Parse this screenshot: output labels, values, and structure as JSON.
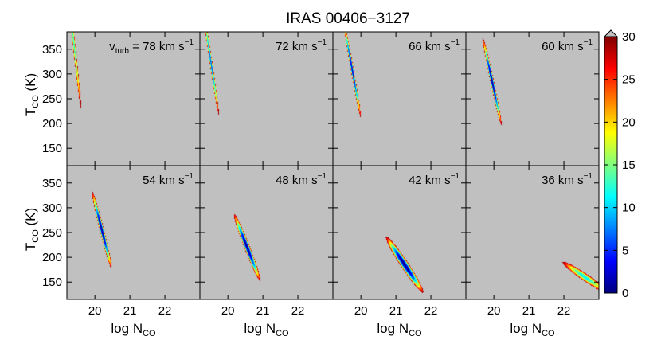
{
  "chart_data": {
    "type": "heatmap",
    "title": "IRAS 00406−3127",
    "xlabel": {
      "base": "log N",
      "sub": "CO"
    },
    "ylabel": {
      "base": "T",
      "sub": "CO",
      "unit": " (K)"
    },
    "xlim": [
      19.2,
      23.0
    ],
    "ylim": [
      115,
      385
    ],
    "xticks": [
      20,
      21,
      22
    ],
    "yticks": [
      150,
      200,
      250,
      300,
      350
    ],
    "colorbar": {
      "min": 0,
      "max": 30,
      "ticks": [
        0,
        5,
        10,
        15,
        20,
        25,
        30
      ],
      "extend": "max"
    },
    "grid": false,
    "background_color": "#c0c0c0",
    "panel_label_prefix": {
      "base": "v",
      "sub": "turb",
      "eq": " = "
    },
    "unit_label": {
      "base": " km s",
      "sup": "−1"
    },
    "panels": [
      {
        "label": "78",
        "x0": 19.4,
        "y0": 362,
        "sx": 0.15,
        "sy": 95,
        "rho": -0.985,
        "vmin": 12
      },
      {
        "label": "72",
        "x0": 19.52,
        "y0": 322,
        "sx": 0.16,
        "sy": 75,
        "rho": -0.985,
        "vmin": 6
      },
      {
        "label": "66",
        "x0": 19.75,
        "y0": 310,
        "sx": 0.18,
        "sy": 70,
        "rho": -0.985,
        "vmin": 2
      },
      {
        "label": "60",
        "x0": 19.95,
        "y0": 285,
        "sx": 0.19,
        "sy": 62,
        "rho": -0.98,
        "vmin": 0
      },
      {
        "label": "54",
        "x0": 20.2,
        "y0": 255,
        "sx": 0.2,
        "sy": 55,
        "rho": -0.975,
        "vmin": 0
      },
      {
        "label": "48",
        "x0": 20.55,
        "y0": 220,
        "sx": 0.27,
        "sy": 48,
        "rho": -0.975,
        "vmin": 0
      },
      {
        "label": "42",
        "x0": 21.25,
        "y0": 185,
        "sx": 0.38,
        "sy": 40,
        "rho": -0.97,
        "vmin": 0
      },
      {
        "label": "36",
        "x0": 22.6,
        "y0": 160,
        "sx": 0.45,
        "sy": 22,
        "rho": -0.96,
        "vmin": 11
      }
    ]
  }
}
